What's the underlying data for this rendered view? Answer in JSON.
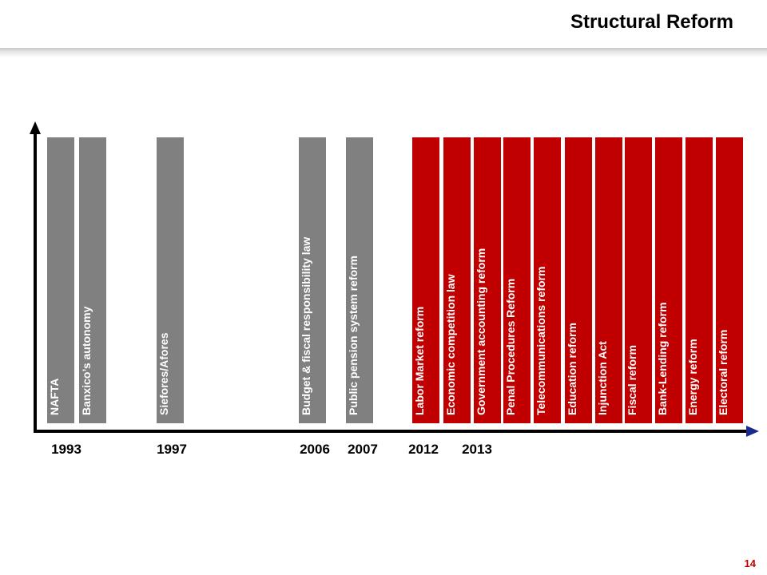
{
  "title": "Structural Reform",
  "page_number": "14",
  "colors": {
    "grey_bar": "#808080",
    "red_bar": "#c00000",
    "axis": "#000000",
    "axis_end": "#1a2a8a"
  },
  "reforms": [
    {
      "label": "NAFTA",
      "color": "grey"
    },
    {
      "label": "Banxico’s autonomy",
      "color": "grey"
    },
    {
      "label": "Siefores/Afores",
      "color": "grey"
    },
    {
      "label": "Budget & fiscal responsibility law",
      "color": "grey"
    },
    {
      "label": "Public pension system reform",
      "color": "grey"
    },
    {
      "label": "Labor Market reform",
      "color": "red"
    },
    {
      "label": "Economic competition law",
      "color": "red"
    },
    {
      "label": "Government accounting reform",
      "color": "red"
    },
    {
      "label": "Penal Procedures Reform",
      "color": "red"
    },
    {
      "label": "Telecommunications reform",
      "color": "red"
    },
    {
      "label": "Education reform",
      "color": "red"
    },
    {
      "label": "Injunction Act",
      "color": "red"
    },
    {
      "label": "Fiscal reform",
      "color": "red"
    },
    {
      "label": "Bank-Lending reform",
      "color": "red"
    },
    {
      "label": "Energy reform",
      "color": "red"
    },
    {
      "label": "Electoral reform",
      "color": "red"
    }
  ],
  "years": [
    "1993",
    "1997",
    "2006",
    "2007",
    "2012",
    "2013"
  ]
}
